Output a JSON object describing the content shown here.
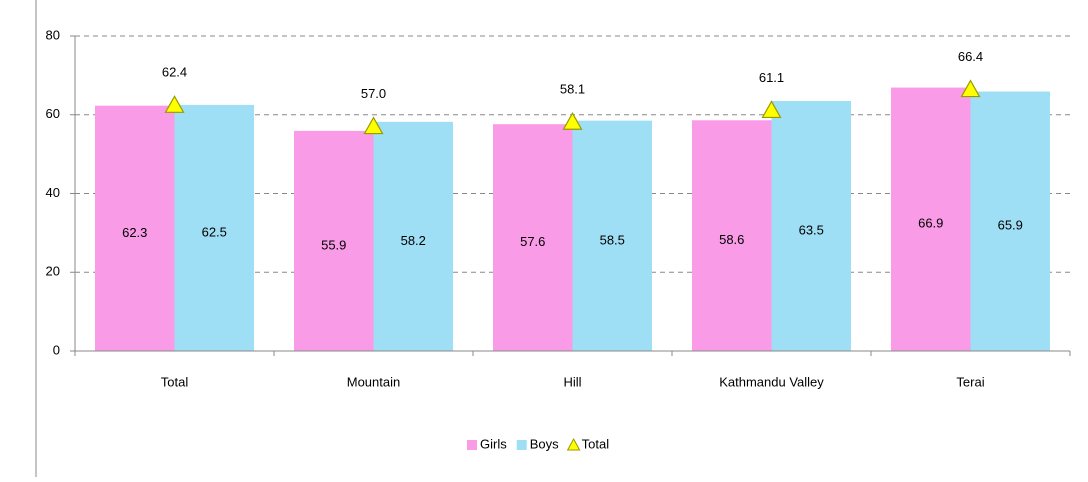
{
  "chart_data": {
    "type": "bar",
    "categories": [
      "Total",
      "Mountain",
      "Hill",
      "Kathmandu Valley",
      "Terai"
    ],
    "series": [
      {
        "name": "Girls",
        "color": "#f99be6",
        "values": [
          62.3,
          55.9,
          57.6,
          58.6,
          66.9
        ]
      },
      {
        "name": "Boys",
        "color": "#9fdff5",
        "values": [
          62.5,
          58.2,
          58.5,
          63.5,
          65.9
        ]
      },
      {
        "name": "Total",
        "type": "marker",
        "color": "#ffff00",
        "values": [
          62.4,
          57.0,
          58.1,
          61.1,
          66.4
        ],
        "value_labels": [
          "62.4",
          "57.0",
          "58.1",
          "61.1",
          "66.4"
        ]
      }
    ],
    "ylim": [
      0,
      80
    ],
    "yticks": [
      0,
      20,
      40,
      60,
      80
    ],
    "grid": true,
    "legend": "bottom"
  }
}
